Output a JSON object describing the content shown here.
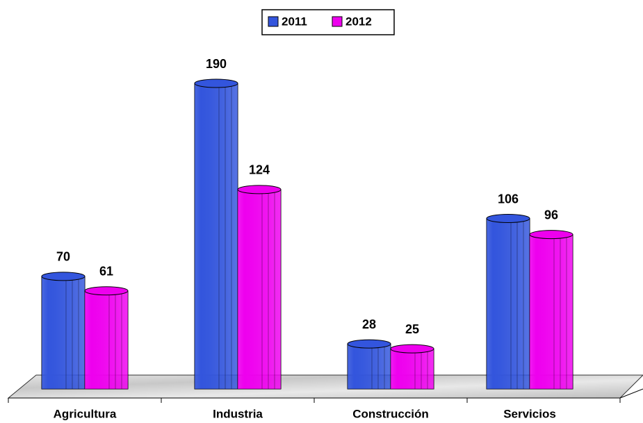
{
  "chart_data": {
    "type": "bar",
    "categories": [
      "Agricultura",
      "Industria",
      "Construcción",
      "Servicios"
    ],
    "series": [
      {
        "name": "2011",
        "color": "#3355dd",
        "values": [
          70,
          190,
          28,
          106
        ]
      },
      {
        "name": "2012",
        "color": "#ee00ee",
        "values": [
          61,
          124,
          25,
          96
        ]
      }
    ],
    "legend": "top"
  }
}
